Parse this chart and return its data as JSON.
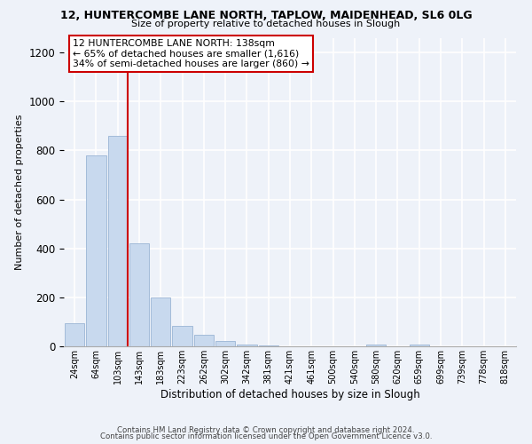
{
  "title": "12, HUNTERCOMBE LANE NORTH, TAPLOW, MAIDENHEAD, SL6 0LG",
  "subtitle": "Size of property relative to detached houses in Slough",
  "xlabel": "Distribution of detached houses by size in Slough",
  "ylabel": "Number of detached properties",
  "bar_color": "#c8d9ee",
  "bar_edge_color": "#9ab4d4",
  "categories": [
    "24sqm",
    "64sqm",
    "103sqm",
    "143sqm",
    "183sqm",
    "223sqm",
    "262sqm",
    "302sqm",
    "342sqm",
    "381sqm",
    "421sqm",
    "461sqm",
    "500sqm",
    "540sqm",
    "580sqm",
    "620sqm",
    "659sqm",
    "699sqm",
    "739sqm",
    "778sqm",
    "818sqm"
  ],
  "values": [
    95,
    780,
    860,
    420,
    200,
    85,
    48,
    20,
    8,
    3,
    1,
    0,
    0,
    0,
    8,
    0,
    8,
    0,
    0,
    0,
    0
  ],
  "ylim": [
    0,
    1260
  ],
  "yticks": [
    0,
    200,
    400,
    600,
    800,
    1000,
    1200
  ],
  "vline_index": 2,
  "vline_color": "#cc0000",
  "annotation_title": "12 HUNTERCOMBE LANE NORTH: 138sqm",
  "annotation_line1": "← 65% of detached houses are smaller (1,616)",
  "annotation_line2": "34% of semi-detached houses are larger (860) →",
  "annotation_box_color": "#ffffff",
  "annotation_box_edge": "#cc0000",
  "footer1": "Contains HM Land Registry data © Crown copyright and database right 2024.",
  "footer2": "Contains public sector information licensed under the Open Government Licence v3.0.",
  "background_color": "#eef2f9"
}
